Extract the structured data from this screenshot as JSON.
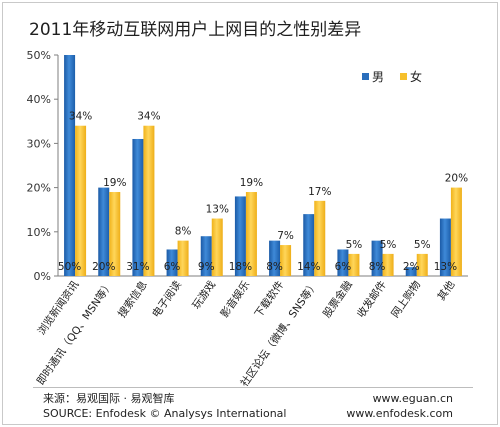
{
  "chart_data": {
    "type": "bar",
    "title": "2011年移动互联网用户上网目的之性别差异",
    "categories": [
      "浏览新闻资讯",
      "即时通讯（QQ、MSN等）",
      "搜索信息",
      "电子阅读",
      "玩游戏",
      "影音娱乐",
      "下载软件",
      "社区论坛（微博、SNS等）",
      "股票金融",
      "收发邮件",
      "网上购物",
      "其他"
    ],
    "series": [
      {
        "name": "男",
        "values": [
          50,
          20,
          31,
          6,
          9,
          18,
          8,
          14,
          6,
          8,
          2,
          13
        ],
        "labels": [
          "50%",
          "20%",
          "31%",
          "6%",
          "9%",
          "18%",
          "8%",
          "14%",
          "6%",
          "8%",
          "2%",
          "13%"
        ],
        "color": "#2a6ebc"
      },
      {
        "name": "女",
        "values": [
          34,
          19,
          34,
          8,
          13,
          19,
          7,
          17,
          5,
          5,
          5,
          20
        ],
        "labels": [
          "34%",
          "19%",
          "34%",
          "8%",
          "13%",
          "19%",
          "7%",
          "17%",
          "5%",
          "5%",
          "5%",
          "20%"
        ],
        "color": "#f6c02c"
      }
    ],
    "y_ticks": [
      "0%",
      "10%",
      "20%",
      "30%",
      "40%",
      "50%"
    ],
    "ylim": [
      0,
      50
    ],
    "grid": false,
    "legend_position": "top-right"
  },
  "footer": {
    "source_cn": "来源：易观国际 · 易观智库",
    "source_en": "SOURCE: Enfodesk © Analysys International",
    "site1": "www.eguan.cn",
    "site2": "www.enfodesk.com"
  }
}
